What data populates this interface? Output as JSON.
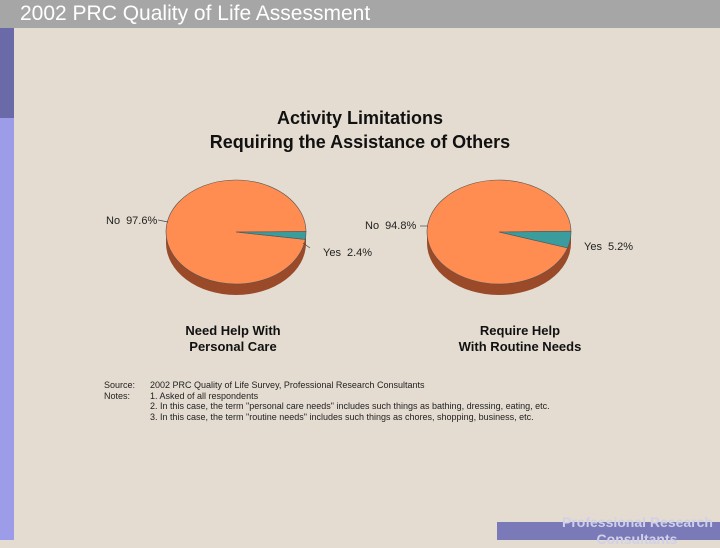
{
  "header": {
    "title": "2002 PRC Quality of Life Assessment"
  },
  "footer": {
    "brand_line1": "Professional Research",
    "brand_line2": "Consultants"
  },
  "chart_data": {
    "type": "pie",
    "title": "Activity Limitations",
    "subtitle": "Requiring the Assistance of Others",
    "pies": [
      {
        "caption_line1": "Need Help With",
        "caption_line2": "Personal Care",
        "slices": [
          {
            "label": "No",
            "display": "97.6%",
            "value": 97.6,
            "color": "#ff8c50"
          },
          {
            "label": "Yes",
            "display": "2.4%",
            "value": 2.4,
            "color": "#3a9c9c"
          }
        ]
      },
      {
        "caption_line1": "Require Help",
        "caption_line2": "With Routine Needs",
        "slices": [
          {
            "label": "No",
            "display": "94.8%",
            "value": 94.8,
            "color": "#ff8c50"
          },
          {
            "label": "Yes",
            "display": "5.2%",
            "value": 5.2,
            "color": "#3a9c9c"
          }
        ]
      }
    ],
    "side_color": "#9a4a28"
  },
  "notes": {
    "source_label": "Source:",
    "source_text": "2002 PRC Quality of Life Survey, Professional Research Consultants",
    "notes_label": "Notes:",
    "items": [
      "1.  Asked of all respondents",
      "2.  In this case, the term \"personal care needs\" includes such things as bathing, dressing, eating, etc.",
      "3.  In this case, the term \"routine needs\" includes such things as chores, shopping, business, etc."
    ]
  }
}
